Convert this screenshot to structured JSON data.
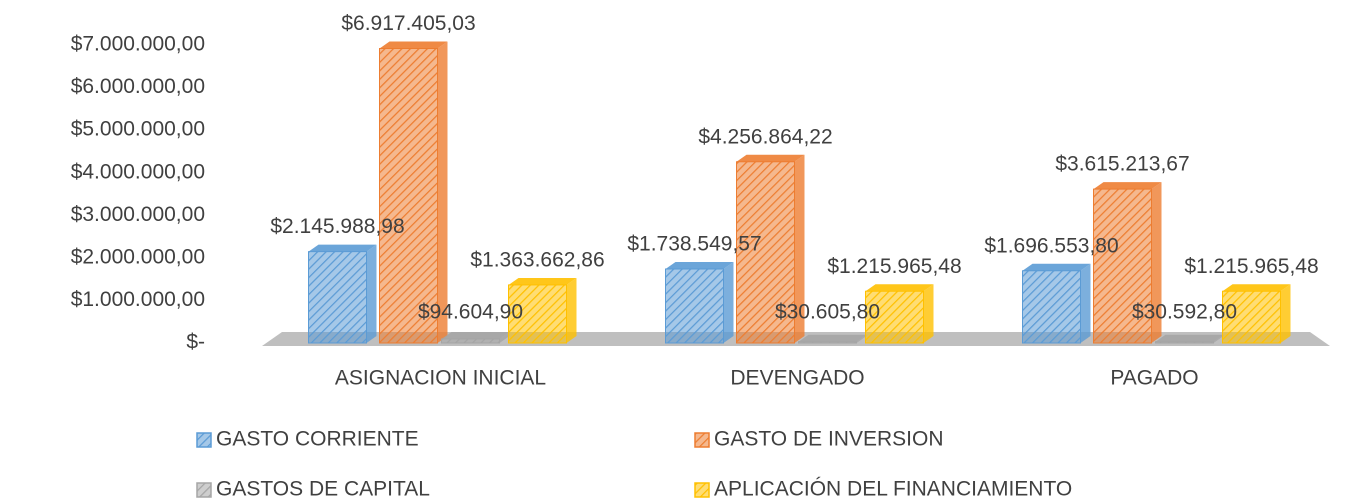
{
  "chart_data": {
    "type": "bar",
    "categories": [
      "ASIGNACION INICIAL",
      "DEVENGADO",
      "PAGADO"
    ],
    "series": [
      {
        "name": "GASTO CORRIENTE",
        "color": "#5b9bd5",
        "values": [
          2145988.98,
          1738549.57,
          1696553.8
        ],
        "value_labels": [
          "$2.145.988,98",
          "$1.738.549,57",
          "$1.696.553,80"
        ]
      },
      {
        "name": "GASTO DE INVERSION",
        "color": "#ed7d31",
        "values": [
          6917405.03,
          4256864.22,
          3615213.67
        ],
        "value_labels": [
          "$6.917.405,03",
          "$4.256.864,22",
          "$3.615.213,67"
        ]
      },
      {
        "name": "GASTOS DE CAPITAL",
        "color": "#a5a5a5",
        "values": [
          94604.9,
          30605.8,
          30592.8
        ],
        "value_labels": [
          "$94.604,90",
          "$30.605,80",
          "$30.592,80"
        ]
      },
      {
        "name": "APLICACIÓN DEL FINANCIAMIENTO",
        "color": "#ffc000",
        "values": [
          1363662.86,
          1215965.48,
          1215965.48
        ],
        "value_labels": [
          "$1.363.662,86",
          "$1.215.965,48",
          "$1.215.965,48"
        ]
      }
    ],
    "ylim": [
      0,
      7000000
    ],
    "yticks": [
      {
        "value": 0,
        "label": "$-"
      },
      {
        "value": 1000000,
        "label": "$1.000.000,00"
      },
      {
        "value": 2000000,
        "label": "$2.000.000,00"
      },
      {
        "value": 3000000,
        "label": "$3.000.000,00"
      },
      {
        "value": 4000000,
        "label": "$4.000.000,00"
      },
      {
        "value": 5000000,
        "label": "$5.000.000,00"
      },
      {
        "value": 6000000,
        "label": "$6.000.000,00"
      },
      {
        "value": 7000000,
        "label": "$7.000.000,00"
      }
    ],
    "grid": false
  }
}
